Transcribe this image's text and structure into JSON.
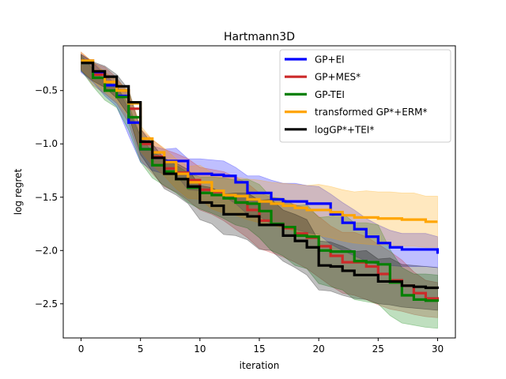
{
  "chart_data": {
    "type": "line",
    "title": "Hartmann3D",
    "xlabel": "iteration",
    "ylabel": "log regret",
    "xlim": [
      -1.5,
      31.5
    ],
    "ylim": [
      -2.82,
      -0.08
    ],
    "xticks": [
      0,
      5,
      10,
      15,
      20,
      25,
      30
    ],
    "yticks": [
      -0.5,
      -1.0,
      -1.5,
      -2.0,
      -2.5
    ],
    "xtick_labels": [
      "0",
      "5",
      "10",
      "15",
      "20",
      "25",
      "30"
    ],
    "ytick_labels": [
      "−0.5",
      "−1.0",
      "−1.5",
      "−2.0",
      "−2.5"
    ],
    "grid": false,
    "legend_position": "upper-right",
    "x": [
      0,
      1,
      2,
      3,
      4,
      5,
      6,
      7,
      8,
      9,
      10,
      11,
      12,
      13,
      14,
      15,
      16,
      17,
      18,
      19,
      20,
      21,
      22,
      23,
      24,
      25,
      26,
      27,
      28,
      29,
      30
    ],
    "series": [
      {
        "name": "GP+EI",
        "color": "#0000ff",
        "values": [
          -0.24,
          -0.33,
          -0.45,
          -0.55,
          -0.8,
          -1.05,
          -1.13,
          -1.16,
          -1.16,
          -1.28,
          -1.28,
          -1.29,
          -1.3,
          -1.36,
          -1.46,
          -1.46,
          -1.52,
          -1.54,
          -1.54,
          -1.56,
          -1.56,
          -1.66,
          -1.74,
          -1.8,
          -1.87,
          -1.93,
          -1.97,
          -1.99,
          -1.99,
          -1.99,
          -2.03
        ],
        "lower": [
          -0.33,
          -0.42,
          -0.55,
          -0.65,
          -0.92,
          -1.17,
          -1.25,
          -1.28,
          -1.29,
          -1.43,
          -1.44,
          -1.46,
          -1.49,
          -1.56,
          -1.66,
          -1.68,
          -1.75,
          -1.78,
          -1.8,
          -1.83,
          -1.85,
          -1.94,
          -2.0,
          -2.05,
          -2.1,
          -2.13,
          -2.14,
          -2.15,
          -2.15,
          -2.15,
          -2.16
        ],
        "upper": [
          -0.16,
          -0.24,
          -0.35,
          -0.45,
          -0.68,
          -0.93,
          -1.02,
          -1.05,
          -1.04,
          -1.14,
          -1.14,
          -1.15,
          -1.16,
          -1.22,
          -1.3,
          -1.3,
          -1.34,
          -1.37,
          -1.37,
          -1.39,
          -1.4,
          -1.47,
          -1.55,
          -1.62,
          -1.7,
          -1.76,
          -1.81,
          -1.84,
          -1.84,
          -1.84,
          -1.87
        ]
      },
      {
        "name": "GP+MES*",
        "color": "#cc2a2a",
        "values": [
          -0.22,
          -0.35,
          -0.42,
          -0.5,
          -0.67,
          -1.0,
          -1.12,
          -1.23,
          -1.27,
          -1.34,
          -1.43,
          -1.45,
          -1.48,
          -1.55,
          -1.62,
          -1.72,
          -1.76,
          -1.79,
          -1.84,
          -1.88,
          -1.96,
          -2.05,
          -2.11,
          -2.11,
          -2.15,
          -2.22,
          -2.28,
          -2.33,
          -2.4,
          -2.45,
          -2.47
        ],
        "lower": [
          -0.3,
          -0.45,
          -0.53,
          -0.62,
          -0.8,
          -1.15,
          -1.28,
          -1.4,
          -1.45,
          -1.53,
          -1.62,
          -1.66,
          -1.72,
          -1.8,
          -1.88,
          -1.98,
          -2.02,
          -2.06,
          -2.11,
          -2.17,
          -2.25,
          -2.33,
          -2.4,
          -2.42,
          -2.46,
          -2.51,
          -2.55,
          -2.57,
          -2.6,
          -2.62,
          -2.63
        ],
        "upper": [
          -0.14,
          -0.24,
          -0.28,
          -0.38,
          -0.53,
          -0.86,
          -0.96,
          -1.05,
          -1.09,
          -1.14,
          -1.22,
          -1.24,
          -1.26,
          -1.31,
          -1.37,
          -1.46,
          -1.5,
          -1.52,
          -1.57,
          -1.6,
          -1.68,
          -1.77,
          -1.83,
          -1.83,
          -1.87,
          -1.94,
          -2.01,
          -2.09,
          -2.2,
          -2.28,
          -2.3
        ]
      },
      {
        "name": "GP-TEI",
        "color": "#008000",
        "values": [
          -0.24,
          -0.38,
          -0.5,
          -0.56,
          -0.75,
          -1.05,
          -1.2,
          -1.26,
          -1.33,
          -1.41,
          -1.46,
          -1.48,
          -1.51,
          -1.55,
          -1.56,
          -1.63,
          -1.75,
          -1.78,
          -1.86,
          -1.87,
          -2.0,
          -2.01,
          -2.01,
          -2.1,
          -2.11,
          -2.13,
          -2.3,
          -2.42,
          -2.46,
          -2.47,
          -2.48
        ],
        "lower": [
          -0.31,
          -0.46,
          -0.59,
          -0.66,
          -0.87,
          -1.17,
          -1.32,
          -1.39,
          -1.46,
          -1.55,
          -1.61,
          -1.65,
          -1.7,
          -1.76,
          -1.79,
          -1.88,
          -2.0,
          -2.05,
          -2.14,
          -2.17,
          -2.31,
          -2.34,
          -2.37,
          -2.46,
          -2.48,
          -2.5,
          -2.61,
          -2.68,
          -2.7,
          -2.72,
          -2.73
        ],
        "upper": [
          -0.17,
          -0.3,
          -0.41,
          -0.46,
          -0.63,
          -0.93,
          -1.08,
          -1.13,
          -1.2,
          -1.27,
          -1.31,
          -1.31,
          -1.32,
          -1.34,
          -1.33,
          -1.38,
          -1.5,
          -1.51,
          -1.58,
          -1.57,
          -1.69,
          -1.68,
          -1.65,
          -1.74,
          -1.74,
          -1.76,
          -1.99,
          -2.16,
          -2.22,
          -2.22,
          -2.23
        ]
      },
      {
        "name": "transformed GP*+ERM*",
        "color": "#ffa500",
        "values": [
          -0.22,
          -0.32,
          -0.42,
          -0.5,
          -0.62,
          -0.95,
          -1.08,
          -1.17,
          -1.28,
          -1.36,
          -1.36,
          -1.44,
          -1.48,
          -1.49,
          -1.52,
          -1.54,
          -1.56,
          -1.58,
          -1.6,
          -1.62,
          -1.62,
          -1.64,
          -1.67,
          -1.69,
          -1.69,
          -1.7,
          -1.7,
          -1.71,
          -1.71,
          -1.73,
          -1.73
        ],
        "lower": [
          -0.3,
          -0.41,
          -0.51,
          -0.6,
          -0.74,
          -1.07,
          -1.2,
          -1.3,
          -1.42,
          -1.51,
          -1.52,
          -1.61,
          -1.65,
          -1.67,
          -1.71,
          -1.74,
          -1.76,
          -1.79,
          -1.82,
          -1.85,
          -1.86,
          -1.88,
          -1.91,
          -1.93,
          -1.94,
          -1.95,
          -1.95,
          -1.96,
          -1.96,
          -1.97,
          -1.97
        ],
        "upper": [
          -0.14,
          -0.23,
          -0.33,
          -0.4,
          -0.5,
          -0.83,
          -0.96,
          -1.04,
          -1.14,
          -1.21,
          -1.2,
          -1.27,
          -1.31,
          -1.31,
          -1.33,
          -1.34,
          -1.36,
          -1.37,
          -1.38,
          -1.39,
          -1.38,
          -1.4,
          -1.43,
          -1.45,
          -1.44,
          -1.45,
          -1.45,
          -1.46,
          -1.46,
          -1.49,
          -1.49
        ]
      },
      {
        "name": "logGP*+TEI*",
        "color": "#000000",
        "values": [
          -0.24,
          -0.32,
          -0.37,
          -0.46,
          -0.61,
          -0.98,
          -1.13,
          -1.28,
          -1.33,
          -1.4,
          -1.55,
          -1.58,
          -1.66,
          -1.66,
          -1.68,
          -1.76,
          -1.76,
          -1.86,
          -1.91,
          -1.97,
          -2.14,
          -2.15,
          -2.19,
          -2.23,
          -2.23,
          -2.29,
          -2.29,
          -2.33,
          -2.34,
          -2.35,
          -2.36
        ],
        "lower": [
          -0.32,
          -0.41,
          -0.47,
          -0.57,
          -0.73,
          -1.1,
          -1.26,
          -1.42,
          -1.48,
          -1.56,
          -1.71,
          -1.75,
          -1.85,
          -1.86,
          -1.9,
          -1.99,
          -2.0,
          -2.1,
          -2.16,
          -2.23,
          -2.37,
          -2.38,
          -2.42,
          -2.45,
          -2.46,
          -2.5,
          -2.51,
          -2.53,
          -2.54,
          -2.55,
          -2.56
        ],
        "upper": [
          -0.16,
          -0.23,
          -0.27,
          -0.35,
          -0.49,
          -0.86,
          -1.0,
          -1.14,
          -1.18,
          -1.24,
          -1.39,
          -1.41,
          -1.47,
          -1.46,
          -1.46,
          -1.53,
          -1.52,
          -1.62,
          -1.66,
          -1.71,
          -1.91,
          -1.92,
          -1.96,
          -2.01,
          -2.0,
          -2.08,
          -2.07,
          -2.13,
          -2.14,
          -2.15,
          -2.16
        ]
      }
    ]
  }
}
